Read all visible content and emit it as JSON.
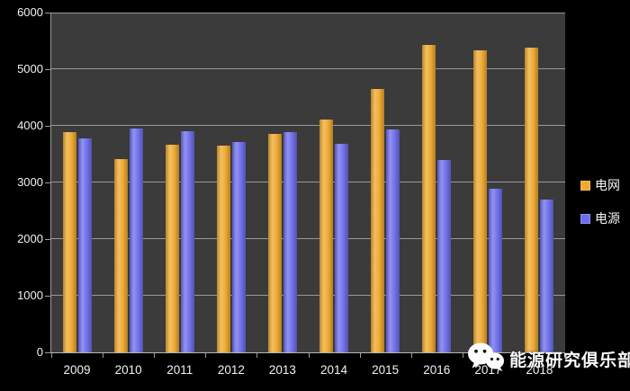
{
  "chart_data": {
    "type": "bar",
    "title": "",
    "categories": [
      "2009",
      "2010",
      "2011",
      "2012",
      "2013",
      "2014",
      "2015",
      "2016",
      "2017",
      "2018"
    ],
    "series": [
      {
        "name": "电网",
        "color": "#EFA92F",
        "values": [
          3890,
          3420,
          3670,
          3650,
          3850,
          4110,
          4650,
          5430,
          5340,
          5380
        ]
      },
      {
        "name": "电源",
        "color": "#6E6EEC",
        "values": [
          3780,
          3960,
          3910,
          3710,
          3890,
          3680,
          3930,
          3390,
          2890,
          2700
        ]
      }
    ],
    "xlabel": "",
    "ylabel": "",
    "ylim": [
      0,
      6000
    ],
    "ytick_interval": 1000,
    "ytick_labels": [
      "0",
      "1000",
      "2000",
      "3000",
      "4000",
      "5000",
      "6000"
    ],
    "grid": true,
    "legend_position": "right"
  },
  "colors": {
    "canvas_bg": "#000000",
    "plot_bg": "#3B3B3B",
    "gridline": "#A9A9A9",
    "axis": "#9C9C9C",
    "text": "#F2F2F2"
  },
  "legend": {
    "item1_label": "电网",
    "item2_label": "电源"
  },
  "watermark": {
    "icon": "wechat-icon",
    "text": "能源研究俱乐部"
  }
}
